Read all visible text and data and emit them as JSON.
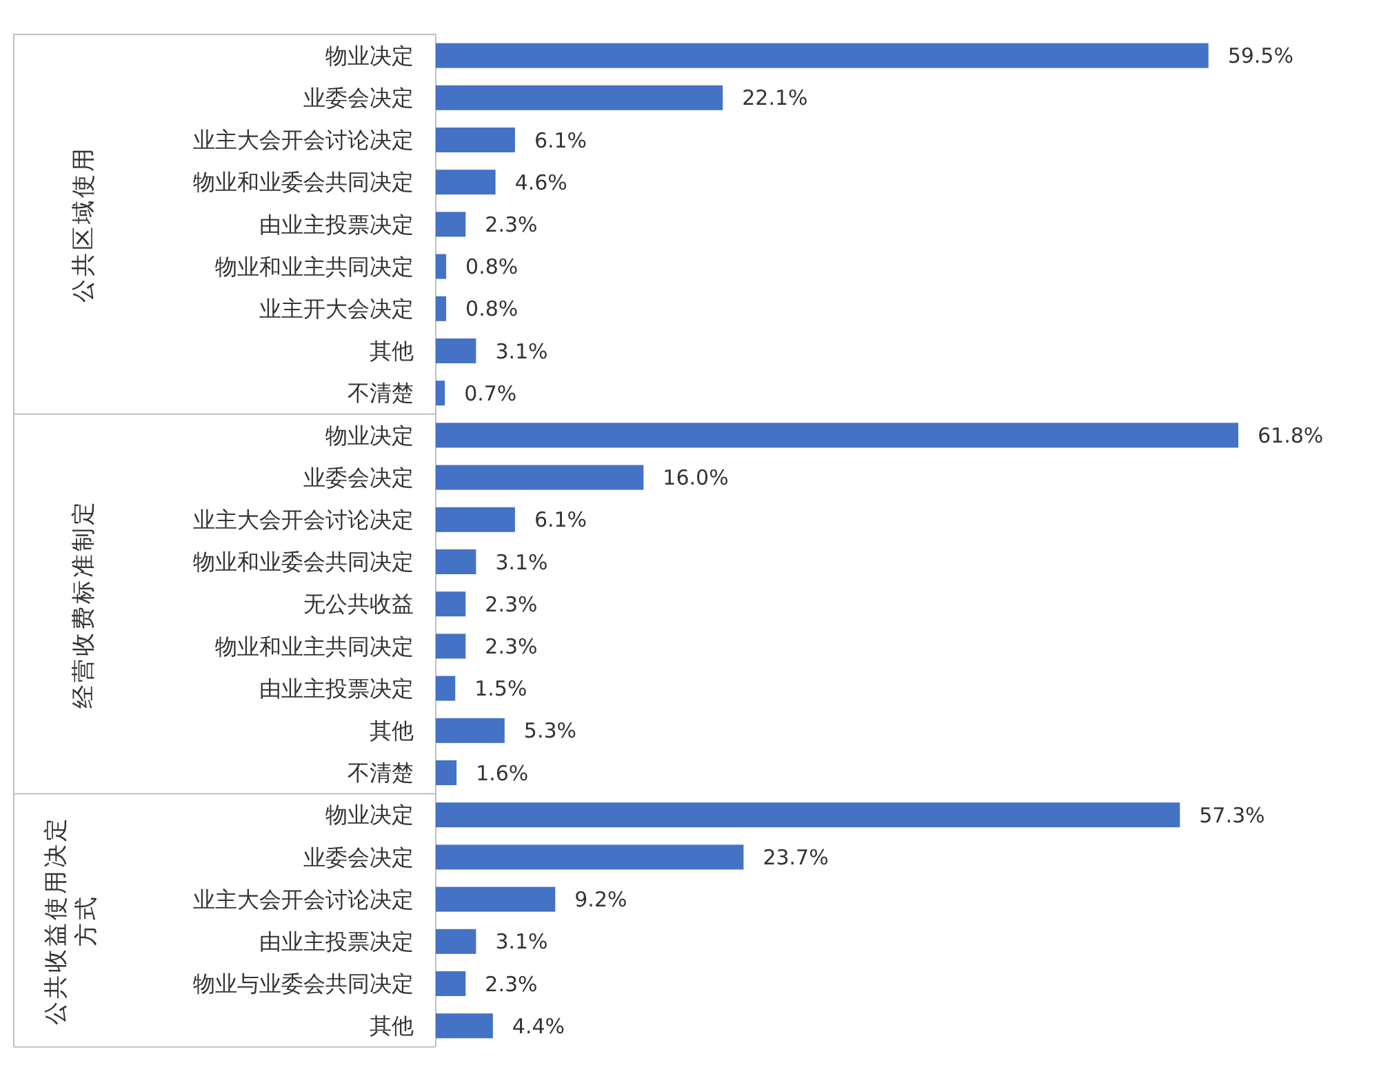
{
  "chart_data": [
    {
      "type": "bar",
      "orientation": "horizontal",
      "ylabel": "公共区域使用",
      "categories": [
        "物业决定",
        "业委会决定",
        "业主大会开会讨论决定",
        "物业和业委会共同决定",
        "由业主投票决定",
        "物业和业主共同决定",
        "业主开大会决定",
        "其他",
        "不清楚"
      ],
      "values": [
        59.5,
        22.1,
        6.1,
        4.6,
        2.3,
        0.8,
        0.8,
        3.1,
        0.7
      ],
      "value_labels": [
        "59.5%",
        "22.1%",
        "6.1%",
        "4.6%",
        "2.3%",
        "0.8%",
        "0.8%",
        "3.1%",
        "0.7%"
      ],
      "color": "#4472c4"
    },
    {
      "type": "bar",
      "orientation": "horizontal",
      "ylabel": "经营收费标准制定",
      "categories": [
        "物业决定",
        "业委会决定",
        "业主大会开会讨论决定",
        "物业和业委会共同决定",
        "无公共收益",
        "物业和业主共同决定",
        "由业主投票决定",
        "其他",
        "不清楚"
      ],
      "values": [
        61.8,
        16.0,
        6.1,
        3.1,
        2.3,
        2.3,
        1.5,
        5.3,
        1.6
      ],
      "value_labels": [
        "61.8%",
        "16.0%",
        "6.1%",
        "3.1%",
        "2.3%",
        "2.3%",
        "1.5%",
        "5.3%",
        "1.6%"
      ],
      "color": "#4472c4"
    },
    {
      "type": "bar",
      "orientation": "horizontal",
      "ylabel": "公共收益使用决定方式",
      "categories": [
        "物业决定",
        "业委会决定",
        "业主大会开会讨论决定",
        "由业主投票决定",
        "物业与业委会共同决定",
        "其他"
      ],
      "values": [
        57.3,
        23.7,
        9.2,
        3.1,
        2.3,
        4.4
      ],
      "value_labels": [
        "57.3%",
        "23.7%",
        "9.2%",
        "3.1%",
        "2.3%",
        "4.4%"
      ],
      "color": "#4472c4"
    }
  ]
}
